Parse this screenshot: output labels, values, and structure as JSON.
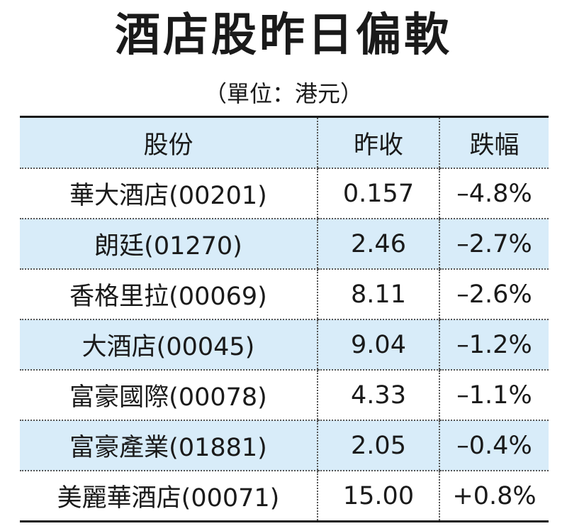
{
  "title": "酒店股昨日偏軟",
  "subtitle": "（單位：港元）",
  "chart_data": {
    "type": "table",
    "columns": [
      "股份",
      "昨收",
      "跌幅"
    ],
    "rows": [
      [
        "華大酒店(00201)",
        "0.157",
        "–4.8%"
      ],
      [
        "朗廷(01270)",
        "2.46",
        "–2.7%"
      ],
      [
        "香格里拉(00069)",
        "8.11",
        "–2.6%"
      ],
      [
        "大酒店(00045)",
        "9.04",
        "–1.2%"
      ],
      [
        "富豪國際(00078)",
        "4.33",
        "–1.1%"
      ],
      [
        "富豪產業(01881)",
        "2.05",
        "–0.4%"
      ],
      [
        "美麗華酒店(00071)",
        "15.00",
        "+0.8%"
      ]
    ]
  },
  "colors": {
    "header_bg": "#d8ecf9",
    "stripe_bg": "#d8ecf9",
    "text": "#1a1a1a"
  }
}
